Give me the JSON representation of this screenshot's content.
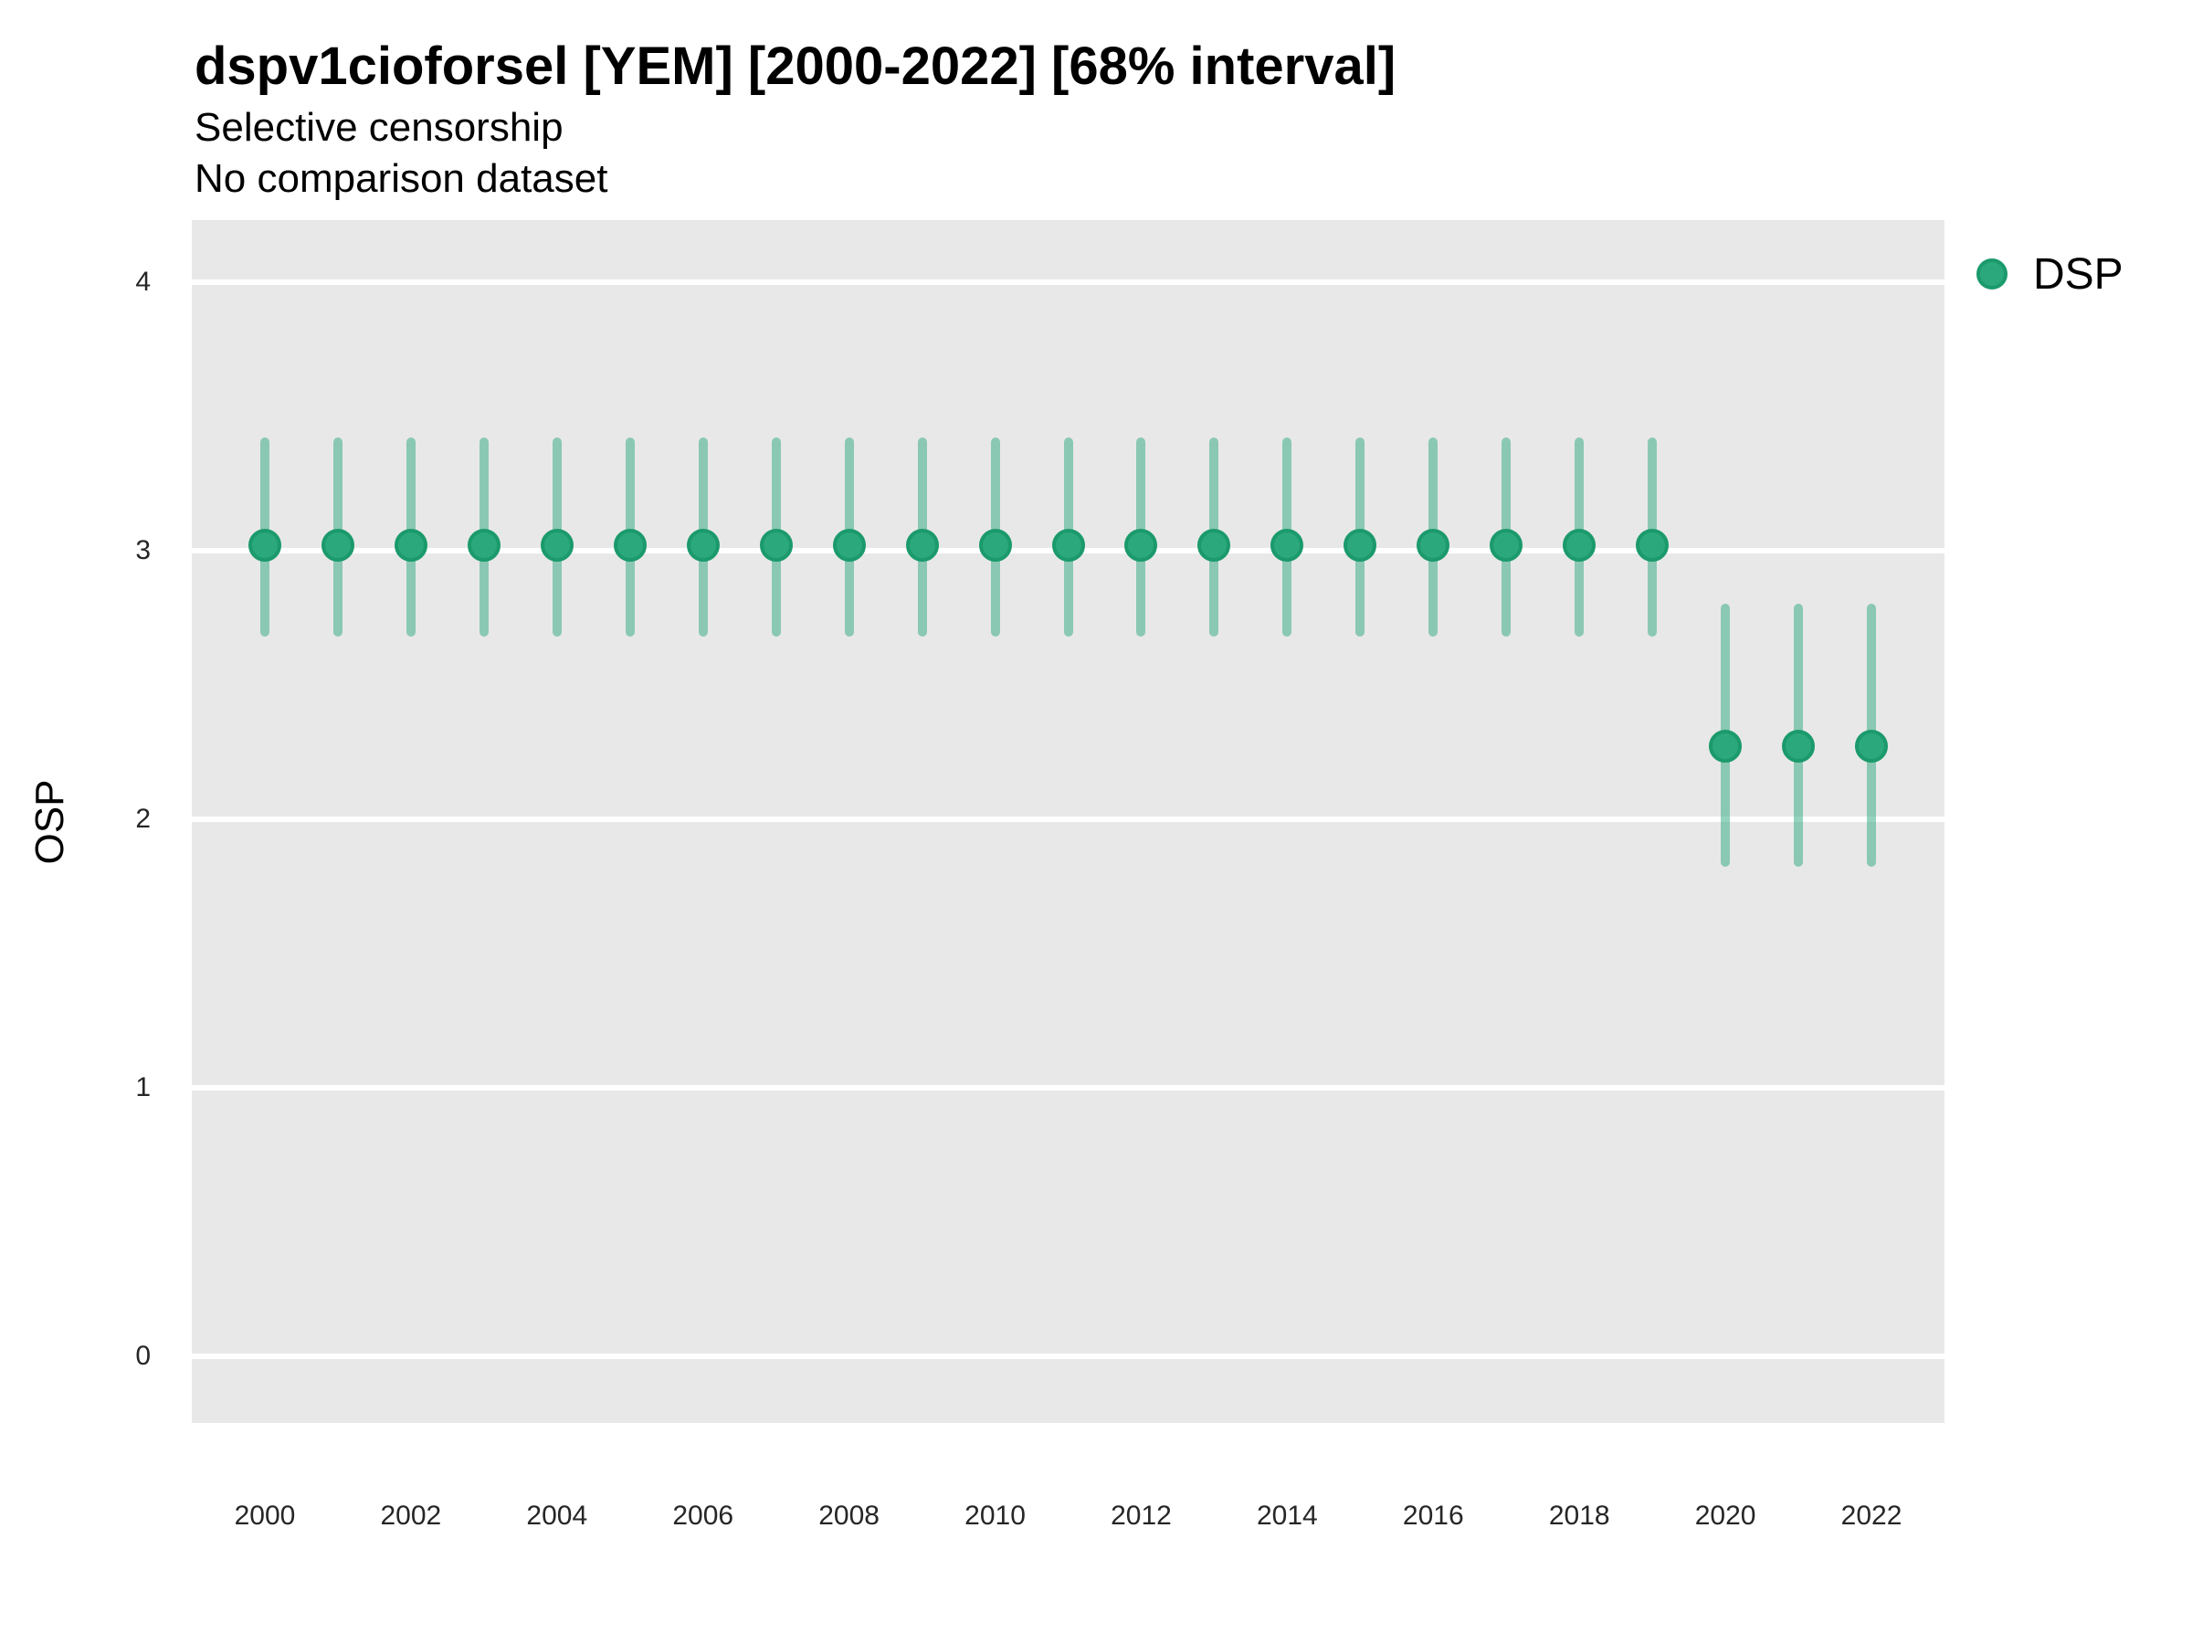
{
  "chart_data": {
    "type": "pointrange",
    "title": "dspv1cioforsel [YEM] [2000-2022] [68% interval]",
    "subtitle1": "Selective censorship",
    "subtitle2": "No comparison dataset",
    "xlabel": "",
    "ylabel": "OSP",
    "interval_level": "68%",
    "legend_position": "top-right",
    "grid": "major-horizontal-only",
    "panel_background": "#E8E8E8",
    "gridline_color": "#FFFFFF",
    "point_color": "#2CA87D",
    "point_stroke": "#1B9A6B",
    "interval_alpha": 0.5,
    "ylim": [
      -0.25,
      4.23
    ],
    "yticks": [
      0,
      1,
      2,
      3,
      4
    ],
    "xticks": [
      2000,
      2002,
      2004,
      2006,
      2008,
      2010,
      2012,
      2014,
      2016,
      2018,
      2020,
      2022
    ],
    "legend": [
      {
        "label": "DSP",
        "color": "#2CA87D",
        "stroke": "#1B9A6B"
      }
    ],
    "series": [
      {
        "name": "DSP",
        "points": [
          {
            "year": 2000,
            "value": 3.02,
            "lower": 2.68,
            "upper": 3.42
          },
          {
            "year": 2001,
            "value": 3.02,
            "lower": 2.68,
            "upper": 3.42
          },
          {
            "year": 2002,
            "value": 3.02,
            "lower": 2.68,
            "upper": 3.42
          },
          {
            "year": 2003,
            "value": 3.02,
            "lower": 2.68,
            "upper": 3.42
          },
          {
            "year": 2004,
            "value": 3.02,
            "lower": 2.68,
            "upper": 3.42
          },
          {
            "year": 2005,
            "value": 3.02,
            "lower": 2.68,
            "upper": 3.42
          },
          {
            "year": 2006,
            "value": 3.02,
            "lower": 2.68,
            "upper": 3.42
          },
          {
            "year": 2007,
            "value": 3.02,
            "lower": 2.68,
            "upper": 3.42
          },
          {
            "year": 2008,
            "value": 3.02,
            "lower": 2.68,
            "upper": 3.42
          },
          {
            "year": 2009,
            "value": 3.02,
            "lower": 2.68,
            "upper": 3.42
          },
          {
            "year": 2010,
            "value": 3.02,
            "lower": 2.68,
            "upper": 3.42
          },
          {
            "year": 2011,
            "value": 3.02,
            "lower": 2.68,
            "upper": 3.42
          },
          {
            "year": 2012,
            "value": 3.02,
            "lower": 2.68,
            "upper": 3.42
          },
          {
            "year": 2013,
            "value": 3.02,
            "lower": 2.68,
            "upper": 3.42
          },
          {
            "year": 2014,
            "value": 3.02,
            "lower": 2.68,
            "upper": 3.42
          },
          {
            "year": 2015,
            "value": 3.02,
            "lower": 2.68,
            "upper": 3.42
          },
          {
            "year": 2016,
            "value": 3.02,
            "lower": 2.68,
            "upper": 3.42
          },
          {
            "year": 2017,
            "value": 3.02,
            "lower": 2.68,
            "upper": 3.42
          },
          {
            "year": 2018,
            "value": 3.02,
            "lower": 2.68,
            "upper": 3.42
          },
          {
            "year": 2019,
            "value": 3.02,
            "lower": 2.68,
            "upper": 3.42
          },
          {
            "year": 2020,
            "value": 2.27,
            "lower": 1.82,
            "upper": 2.8
          },
          {
            "year": 2021,
            "value": 2.27,
            "lower": 1.82,
            "upper": 2.8
          },
          {
            "year": 2022,
            "value": 2.27,
            "lower": 1.82,
            "upper": 2.8
          }
        ]
      }
    ]
  }
}
